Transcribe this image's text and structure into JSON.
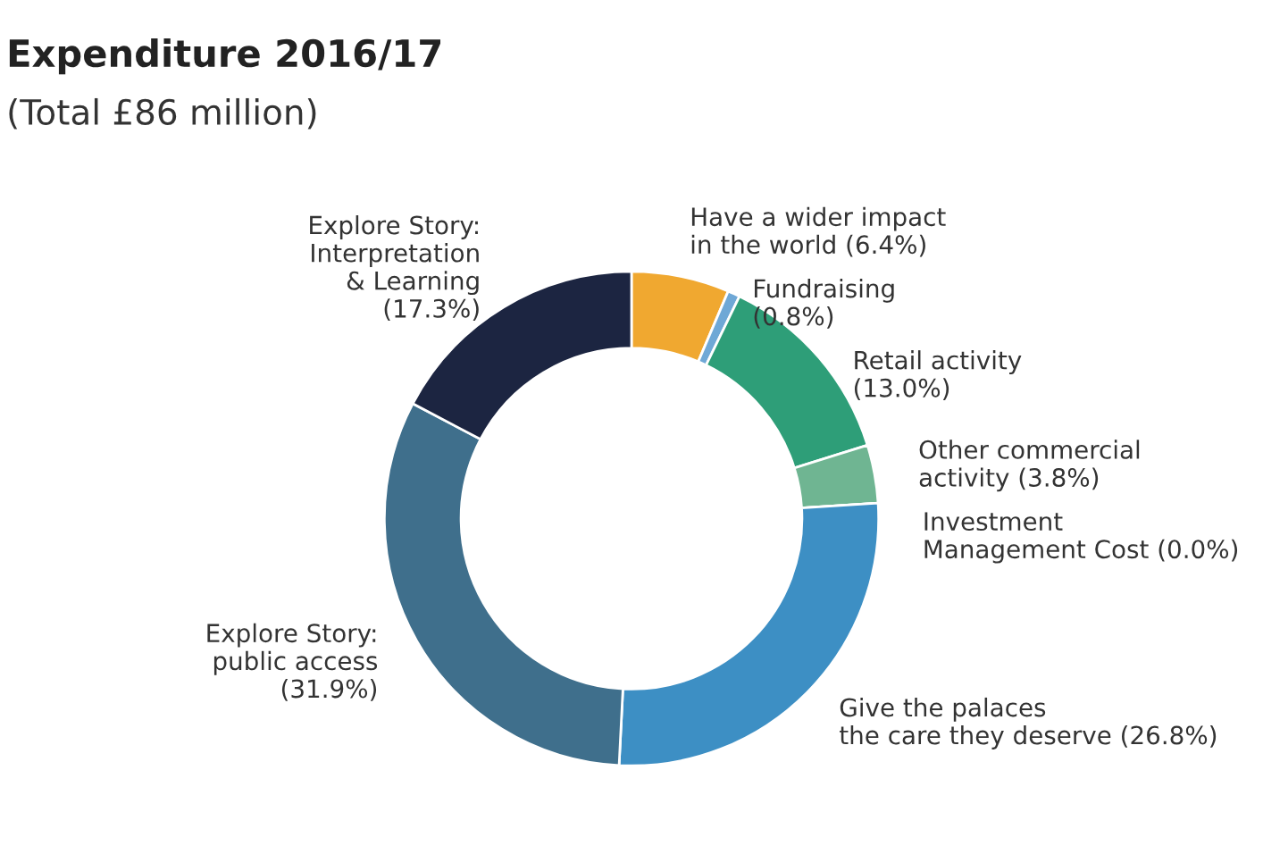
{
  "chart_data": {
    "type": "donut",
    "title": "Expenditure 2016/17",
    "subtitle": "(Total £86 million)",
    "categories": [
      "Have a wider impact\nin the world",
      "Fundraising",
      "Retail activity",
      "Other commercial\nactivity",
      "Investment\nManagement Cost",
      "Give the palaces\nthe care they deserve",
      "Explore Story:\npublic access",
      "Explore Story:\nInterpretation\n& Learning"
    ],
    "values": [
      6.4,
      0.8,
      13.0,
      3.8,
      0.0,
      26.8,
      31.9,
      17.3
    ],
    "value_labels": [
      "(6.4%)",
      "(0.8%)",
      "(13.0%)",
      "(3.8%)",
      "(0.0%)",
      "(26.8%)",
      "(31.9%)",
      "(17.3%)"
    ],
    "colors": [
      "#f0a830",
      "#6fa8d6",
      "#2e9e78",
      "#6fb592",
      "#8fc9a8",
      "#3d8fc4",
      "#3f6f8c",
      "#1c2541"
    ]
  }
}
